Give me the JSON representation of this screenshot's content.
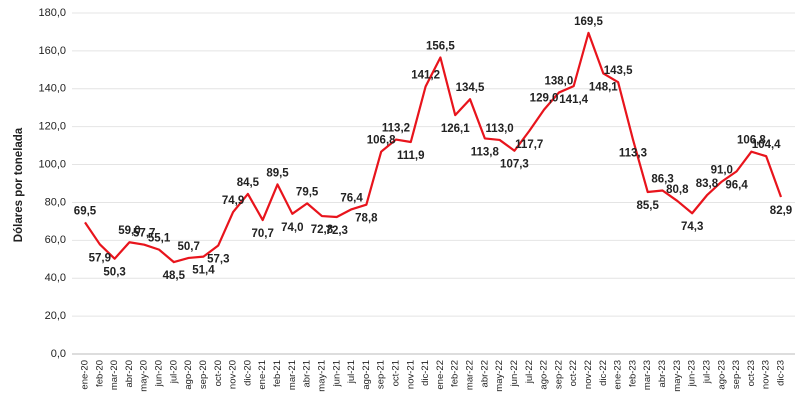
{
  "chart_data": {
    "type": "line",
    "y_label": "Dólares por tonelada",
    "categories": [
      "ene-20",
      "feb-20",
      "mar-20",
      "abr-20",
      "may-20",
      "jun-20",
      "jul-20",
      "ago-20",
      "sep-20",
      "oct-20",
      "nov-20",
      "dic-20",
      "ene-21",
      "feb-21",
      "mar-21",
      "abr-21",
      "may-21",
      "jun-21",
      "jul-21",
      "ago-21",
      "sep-21",
      "oct-21",
      "nov-21",
      "dic-21",
      "ene-22",
      "feb-22",
      "mar-22",
      "abr-22",
      "may-22",
      "jun-22",
      "jul-22",
      "ago-22",
      "sep-22",
      "oct-22",
      "nov-22",
      "dic-22",
      "ene-23",
      "feb-23",
      "mar-23",
      "abr-23",
      "may-23",
      "jun-23",
      "jul-23",
      "ago-23",
      "sep-23",
      "oct-23",
      "nov-23",
      "dic-23"
    ],
    "series": [
      {
        "name": "Dólares por tonelada",
        "color": "#e8141c",
        "values": [
          69.5,
          57.9,
          50.3,
          59.0,
          57.7,
          55.1,
          48.5,
          50.7,
          51.4,
          57.3,
          74.9,
          84.5,
          70.7,
          89.5,
          74.0,
          79.5,
          72.8,
          72.3,
          76.4,
          78.8,
          106.8,
          113.2,
          111.9,
          141.2,
          156.5,
          126.1,
          134.5,
          113.8,
          113.0,
          107.3,
          117.7,
          129.0,
          138.0,
          141.4,
          169.5,
          148.1,
          143.5,
          113.3,
          85.5,
          86.3,
          80.8,
          74.3,
          83.8,
          91.0,
          96.4,
          106.8,
          104.4,
          82.9
        ],
        "value_labels": [
          "69,5",
          "57,9",
          "50,3",
          "59,0",
          "57,7",
          "55,1",
          "48,5",
          "50,7",
          "51,4",
          "57,3",
          "74,9",
          "84,5",
          "70,7",
          "89,5",
          "74,0",
          "79,5",
          "72,8",
          "72,3",
          "76,4",
          "78,8",
          "106,8",
          "113,2",
          "111,9",
          "141,2",
          "156,5",
          "126,1",
          "134,5",
          "113,8",
          "113,0",
          "107,3",
          "117,7",
          "129,0",
          "138,0",
          "141,4",
          "169,5",
          "148,1",
          "143,5",
          "113,3",
          "85,5",
          "86,3",
          "80,8",
          "74,3",
          "83,8",
          "91,0",
          "96,4",
          "106,8",
          "104,4",
          "82,9"
        ]
      }
    ],
    "ylim": [
      0,
      180
    ],
    "yticks": [
      {
        "value": 0,
        "label": "0,0"
      },
      {
        "value": 20,
        "label": "20,0"
      },
      {
        "value": 40,
        "label": "40,0"
      },
      {
        "value": 60,
        "label": "60,0"
      },
      {
        "value": 80,
        "label": "80,0"
      },
      {
        "value": 100,
        "label": "100,0"
      },
      {
        "value": 120,
        "label": "120,0"
      },
      {
        "value": 140,
        "label": "140,0"
      },
      {
        "value": 160,
        "label": "160,0"
      },
      {
        "value": 180,
        "label": "180,0"
      }
    ],
    "grid": true
  }
}
